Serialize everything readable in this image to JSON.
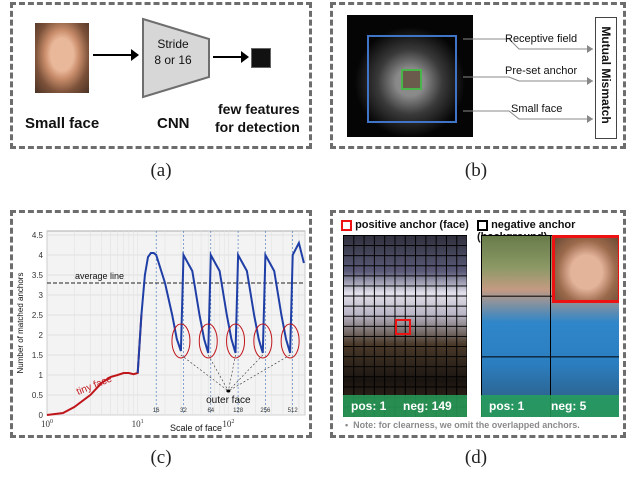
{
  "panel_a": {
    "face_label": "Small face",
    "cnn_stride_line1": "Stride",
    "cnn_stride_line2": "8 or 16",
    "cnn_label": "CNN",
    "output_label_line1": "few features",
    "output_label_line2": "for detection",
    "caption": "(a)"
  },
  "panel_b": {
    "labels": [
      "Receptive field",
      "Pre-set  anchor",
      "Small  face"
    ],
    "side_box": "Mutual Mismatch",
    "caption": "(b)"
  },
  "panel_c": {
    "caption": "(c)",
    "annotations": {
      "average_line": "average line",
      "tiny_face": "tiny face",
      "outer_face": "outer face"
    },
    "chart_data": {
      "type": "line",
      "title": "",
      "xlabel": "Scale of face",
      "ylabel": "Number of matched anchors",
      "x_scale": "log",
      "xlim": [
        1,
        700
      ],
      "ylim": [
        0,
        4.6
      ],
      "yticks": [
        "0",
        "0.5",
        "1",
        "1.5",
        "2",
        "2.5",
        "3",
        "3.5",
        "4",
        "4.5"
      ],
      "xticks_major": [
        "10^0",
        "10^1",
        "10^2"
      ],
      "xticks_inner": [
        "16",
        "32",
        "64",
        "128",
        "256",
        "512"
      ],
      "average_value": 3.3,
      "series": [
        {
          "x": [
            1,
            1.5,
            2,
            3,
            4,
            5,
            6,
            7,
            8,
            9,
            10,
            11,
            12,
            13,
            14,
            15,
            16,
            20,
            24,
            27,
            30,
            32,
            40,
            48,
            54,
            60,
            64,
            80,
            96,
            108,
            120,
            128,
            160,
            192,
            216,
            240,
            256,
            320,
            384,
            432,
            480,
            512,
            600,
            680
          ],
          "y": [
            0,
            0.05,
            0.2,
            0.5,
            0.8,
            0.95,
            1.0,
            1.05,
            1.05,
            1.02,
            1.05,
            2.5,
            3.5,
            3.95,
            4.05,
            4.05,
            4.0,
            3.3,
            2.5,
            1.9,
            1.6,
            4.0,
            3.6,
            2.5,
            1.9,
            1.55,
            4.0,
            3.6,
            2.5,
            1.9,
            1.55,
            4.0,
            3.6,
            2.5,
            1.9,
            1.55,
            4.0,
            3.6,
            2.5,
            1.9,
            1.55,
            4.0,
            4.3,
            3.8
          ]
        }
      ],
      "grid": true
    }
  },
  "panel_d": {
    "legend_positive": "positive anchor (face)",
    "legend_negative": "negative anchor (background)",
    "left_pos": "pos: 1",
    "left_neg": "neg: 149",
    "right_pos": "pos: 1",
    "right_neg": "neg: 5",
    "note": "Note: for clearness,  we omit the overlapped anchors.",
    "note_bullet": "•",
    "caption": "(d)"
  }
}
